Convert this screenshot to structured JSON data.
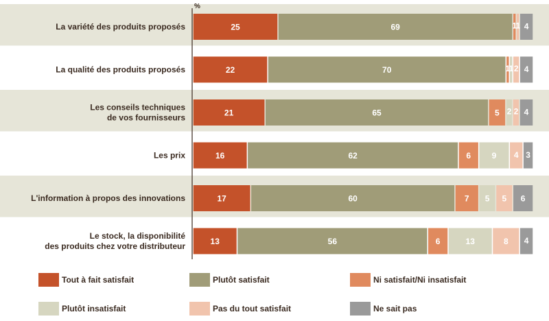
{
  "chart_data": {
    "type": "bar",
    "orientation": "horizontal",
    "stacked": true,
    "unit_label": "%",
    "xlim": [
      0,
      100
    ],
    "categories": [
      "La variété des produits proposés",
      "La qualité des produits proposés",
      "Les conseils techniques de vos fournisseurs",
      "Les prix",
      "L'information à propos des innovations",
      "Le stock, la disponibilité des produits chez votre distributeur"
    ],
    "category_lines": [
      [
        "La variété des produits proposés"
      ],
      [
        "La qualité des produits proposés"
      ],
      [
        "Les conseils techniques",
        "de vos fournisseurs"
      ],
      [
        "Les prix"
      ],
      [
        "L'information à propos des innovations"
      ],
      [
        "Le stock, la disponibilité",
        "des produits chez votre distributeur"
      ]
    ],
    "series": [
      {
        "name": "Tout à fait satisfait",
        "color": "#c4522a",
        "values": [
          25,
          22,
          21,
          16,
          17,
          13
        ],
        "labels": [
          "25",
          "22",
          "21",
          "16",
          "17",
          "13"
        ]
      },
      {
        "name": "Plutôt satisfait",
        "color": "#a09c78",
        "values": [
          69,
          70,
          65,
          62,
          60,
          56
        ],
        "labels": [
          "69",
          "70",
          "65",
          "62",
          "60",
          "56"
        ]
      },
      {
        "name": "Ni satisfait/Ni insatisfait",
        "color": "#e08a5e",
        "values": [
          1,
          1,
          5,
          6,
          7,
          6
        ],
        "labels": [
          "1",
          "1",
          "5",
          "6",
          "7",
          "6"
        ]
      },
      {
        "name": "Plutôt insatisfait",
        "color": "#d6d6c0",
        "values": [
          0,
          1,
          2,
          9,
          5,
          13
        ],
        "labels": [
          "",
          "1",
          "2",
          "9",
          "5",
          "13"
        ]
      },
      {
        "name": "Pas du tout satisfait",
        "color": "#f1c4ad",
        "values": [
          1,
          2,
          2,
          4,
          5,
          8
        ],
        "labels": [
          "1",
          "2",
          "2",
          "4",
          "5",
          "8"
        ]
      },
      {
        "name": "Ne sait pas",
        "color": "#9a9a9a",
        "values": [
          4,
          4,
          4,
          3,
          6,
          4
        ],
        "labels": [
          "4",
          "4",
          "4",
          "3",
          "6",
          "4"
        ]
      }
    ],
    "row_backgrounds": [
      "#e6e5d8",
      "#ffffff",
      "#e6e5d8",
      "#ffffff",
      "#e6e5d8",
      "#ffffff"
    ],
    "grid": false,
    "legend_position": "bottom"
  }
}
